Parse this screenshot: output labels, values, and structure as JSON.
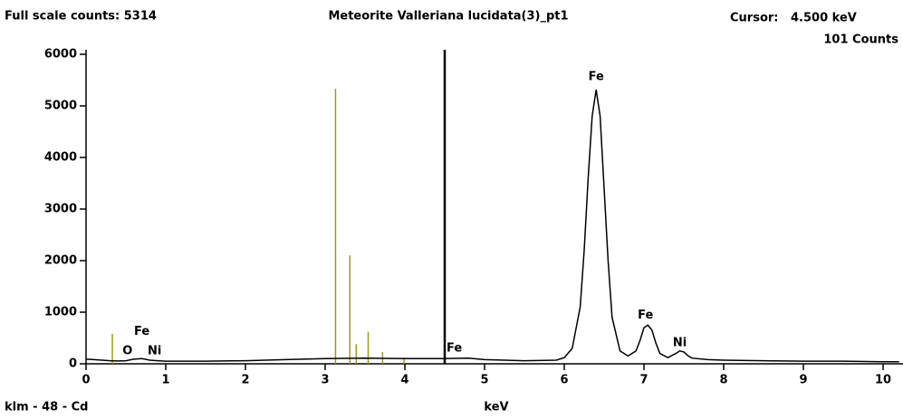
{
  "chart_data": {
    "type": "line",
    "header_left": "Full scale counts: 5314",
    "title": "Meteorite Valleriana lucidata(3)_pt1",
    "cursor": {
      "label": "Cursor:",
      "x": 4.5,
      "energy_label": "4.500 keV",
      "counts_label": "101 Counts",
      "color": "#000000"
    },
    "footer_left": "klm - 48 - Cd",
    "xlabel": "keV",
    "xlim": [
      0,
      10.25
    ],
    "ylim": [
      0,
      6000
    ],
    "xticks": [
      0,
      1,
      2,
      3,
      4,
      5,
      6,
      7,
      8,
      9,
      10
    ],
    "yticks": [
      0,
      1000,
      2000,
      3000,
      4000,
      5000,
      6000
    ],
    "series": [
      {
        "color": "#000000",
        "x": [
          0,
          0.1,
          0.2,
          0.3,
          0.4,
          0.5,
          0.6,
          0.7,
          0.8,
          0.9,
          1.0,
          1.5,
          2.0,
          2.5,
          3.0,
          3.5,
          4.0,
          4.5,
          4.8,
          5.0,
          5.5,
          5.9,
          6.0,
          6.1,
          6.2,
          6.25,
          6.3,
          6.35,
          6.4,
          6.45,
          6.5,
          6.55,
          6.6,
          6.7,
          6.8,
          6.9,
          6.95,
          7.0,
          7.05,
          7.1,
          7.15,
          7.2,
          7.3,
          7.4,
          7.45,
          7.5,
          7.55,
          7.6,
          7.8,
          8.0,
          8.5,
          9.0,
          9.5,
          10.0,
          10.2
        ],
        "values": [
          90,
          80,
          70,
          60,
          55,
          60,
          90,
          100,
          70,
          60,
          50,
          50,
          60,
          80,
          100,
          110,
          100,
          100,
          110,
          80,
          60,
          70,
          120,
          300,
          1100,
          2200,
          3600,
          4800,
          5314,
          4800,
          3400,
          2000,
          900,
          250,
          150,
          250,
          450,
          700,
          750,
          650,
          400,
          200,
          120,
          200,
          250,
          230,
          160,
          110,
          80,
          70,
          60,
          50,
          50,
          40,
          40
        ]
      }
    ],
    "klm_markers": {
      "color": "#9c9c1e",
      "x": [
        0.33,
        3.13,
        3.31,
        3.39,
        3.54,
        3.72,
        3.99
      ],
      "values": [
        580,
        5330,
        2100,
        380,
        620,
        230,
        120
      ]
    },
    "peak_labels": [
      {
        "label": "O",
        "x": 0.52,
        "y": 250
      },
      {
        "label": "Fe",
        "x": 0.7,
        "y": 620
      },
      {
        "label": "Ni",
        "x": 0.86,
        "y": 250
      },
      {
        "label": "Fe",
        "x": 4.62,
        "y": 300
      },
      {
        "label": "Fe",
        "x": 6.4,
        "y": 5560
      },
      {
        "label": "Fe",
        "x": 7.02,
        "y": 940
      },
      {
        "label": "Ni",
        "x": 7.45,
        "y": 400
      }
    ]
  }
}
